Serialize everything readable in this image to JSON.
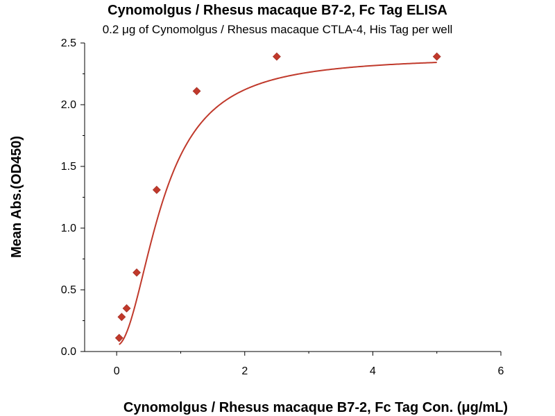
{
  "chart_data": {
    "type": "scatter",
    "title": "Cynomolgus / Rhesus macaque B7-2, Fc Tag ELISA",
    "subtitle": "0.2 μg of Cynomolgus / Rhesus macaque CTLA-4, His Tag per well",
    "xlabel": "Cynomolgus / Rhesus macaque B7-2, Fc Tag Con. (μg/mL)",
    "ylabel": "Mean Abs.(OD450)",
    "xlim": [
      -0.5,
      6
    ],
    "ylim": [
      0,
      2.5
    ],
    "x_ticks": [
      0,
      2,
      4,
      6
    ],
    "y_ticks": [
      0.0,
      0.5,
      1.0,
      1.5,
      2.0,
      2.5
    ],
    "x_tick_labels": [
      "0",
      "2",
      "4",
      "6"
    ],
    "y_tick_labels": [
      "0.0",
      "0.5",
      "1.0",
      "1.5",
      "2.0",
      "2.5"
    ],
    "grid": false,
    "series": [
      {
        "marker": "diamond",
        "color": "#c0392b",
        "x": [
          0.039,
          0.078,
          0.156,
          0.313,
          0.625,
          1.25,
          2.5,
          5.0
        ],
        "y": [
          0.11,
          0.28,
          0.35,
          0.64,
          1.31,
          2.11,
          2.39,
          2.39
        ]
      }
    ],
    "fit_curve": {
      "type": "4PL",
      "color": "#c0392b",
      "bottom": 0.05,
      "top": 2.39,
      "ec50": 0.72,
      "hill": 2.0
    }
  }
}
